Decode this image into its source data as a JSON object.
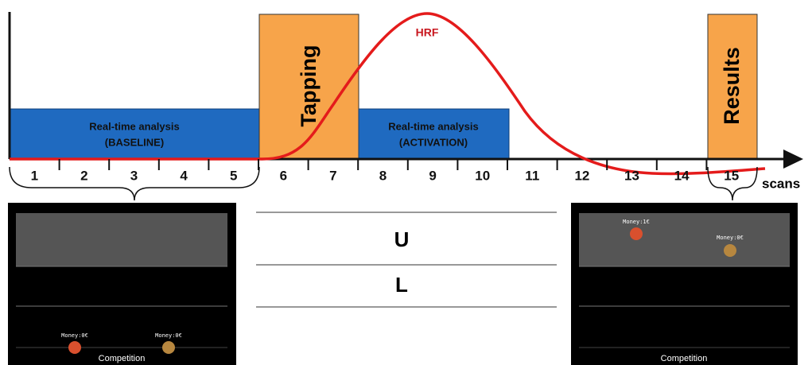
{
  "timeline": {
    "scans": [
      "1",
      "2",
      "3",
      "4",
      "5",
      "6",
      "7",
      "8",
      "9",
      "10",
      "11",
      "12",
      "13",
      "14",
      "15"
    ],
    "axis_label": "scans",
    "curve_label": "HRF"
  },
  "blocks": {
    "baseline": [
      "Real-time analysis",
      "(BASELINE)"
    ],
    "tapping": "Tapping",
    "activation": [
      "Real-time analysis",
      "(ACTIVATION)"
    ],
    "results": "Results"
  },
  "left_screen": {
    "money": [
      "Money:0€",
      "Money:0€"
    ],
    "caption": "Competition"
  },
  "middle": {
    "upper": "U",
    "lower": "L"
  },
  "right_screen": {
    "money": [
      "Money:1€",
      "Money:0€"
    ],
    "caption": "Competition"
  }
}
